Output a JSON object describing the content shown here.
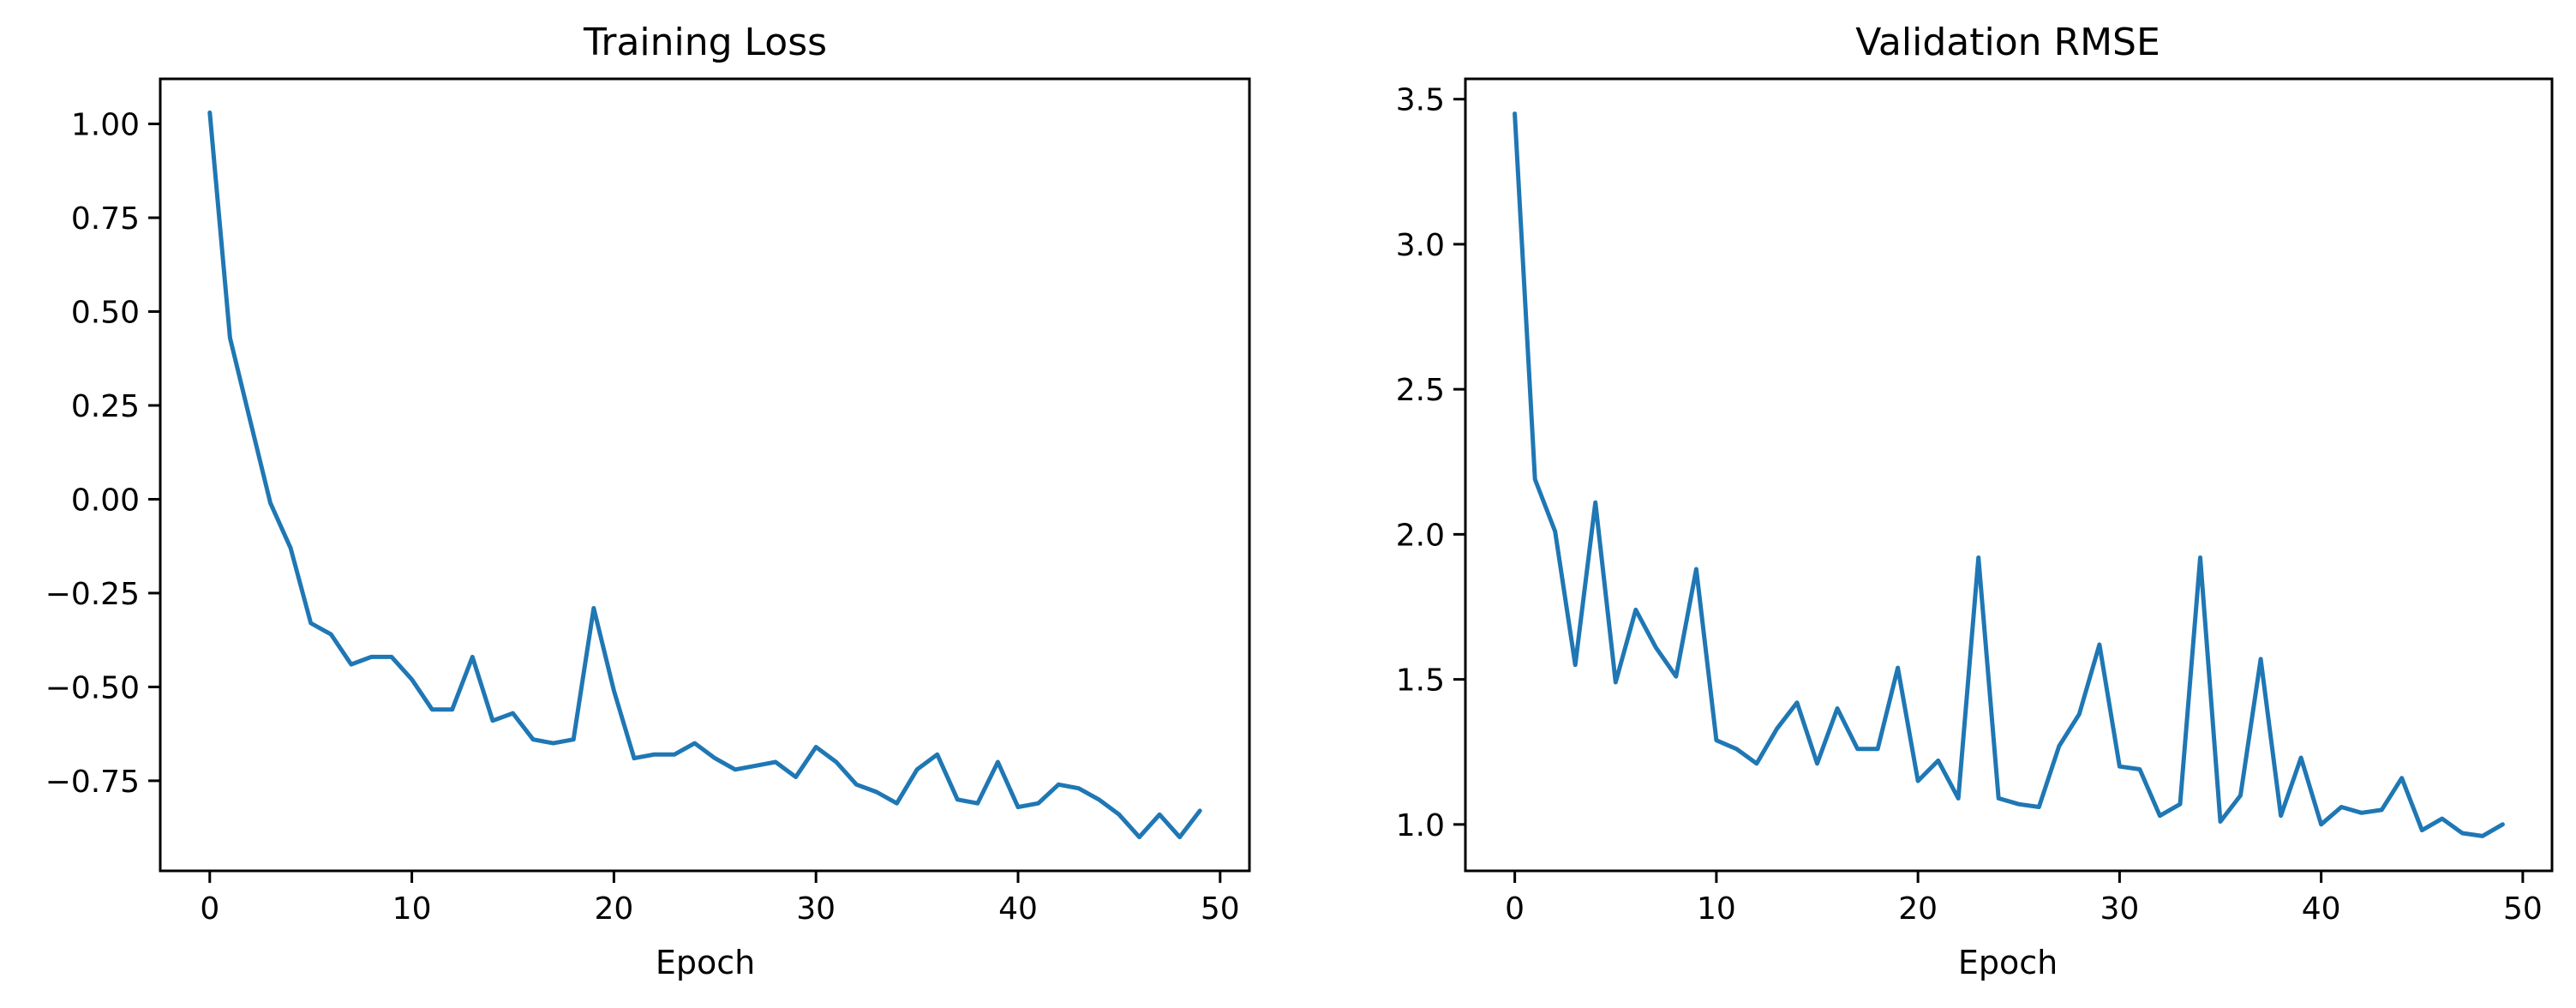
{
  "chart_data": [
    {
      "type": "line",
      "title": "Training Loss",
      "xlabel": "Epoch",
      "ylabel": "",
      "xlim": [
        -2.45,
        51.45
      ],
      "ylim": [
        -0.99,
        1.12
      ],
      "xticks": [
        0,
        10,
        20,
        30,
        40,
        50
      ],
      "yticks": [
        -0.75,
        -0.5,
        -0.25,
        0.0,
        0.25,
        0.5,
        0.75,
        1.0
      ],
      "ytick_labels": [
        "−0.75",
        "−0.50",
        "−0.25",
        "0.00",
        "0.25",
        "0.50",
        "0.75",
        "1.00"
      ],
      "grid": false,
      "color": "#1f77b4",
      "series": [
        {
          "x": [
            0,
            1,
            2,
            3,
            4,
            5,
            6,
            7,
            8,
            9,
            10,
            11,
            12,
            13,
            14,
            15,
            16,
            17,
            18,
            19,
            20,
            21,
            22,
            23,
            24,
            25,
            26,
            27,
            28,
            29,
            30,
            31,
            32,
            33,
            34,
            35,
            36,
            37,
            38,
            39,
            40,
            41,
            42,
            43,
            44,
            45,
            46,
            47,
            48,
            49
          ],
          "values": [
            1.03,
            0.43,
            0.21,
            -0.01,
            -0.13,
            -0.33,
            -0.36,
            -0.44,
            -0.42,
            -0.42,
            -0.48,
            -0.56,
            -0.56,
            -0.42,
            -0.59,
            -0.57,
            -0.64,
            -0.65,
            -0.64,
            -0.29,
            -0.51,
            -0.69,
            -0.68,
            -0.68,
            -0.65,
            -0.69,
            -0.72,
            -0.71,
            -0.7,
            -0.74,
            -0.66,
            -0.7,
            -0.76,
            -0.78,
            -0.81,
            -0.72,
            -0.68,
            -0.8,
            -0.81,
            -0.7,
            -0.82,
            -0.81,
            -0.76,
            -0.77,
            -0.8,
            -0.84,
            -0.9,
            -0.84,
            -0.9,
            -0.83
          ]
        }
      ]
    },
    {
      "type": "line",
      "title": "Validation RMSE",
      "xlabel": "Epoch",
      "ylabel": "",
      "xlim": [
        -2.45,
        51.45
      ],
      "ylim": [
        0.84,
        3.57
      ],
      "xticks": [
        0,
        10,
        20,
        30,
        40,
        50
      ],
      "yticks": [
        1.0,
        1.5,
        2.0,
        2.5,
        3.0,
        3.5
      ],
      "ytick_labels": [
        "1.0",
        "1.5",
        "2.0",
        "2.5",
        "3.0",
        "3.5"
      ],
      "grid": false,
      "color": "#1f77b4",
      "series": [
        {
          "x": [
            0,
            1,
            2,
            3,
            4,
            5,
            6,
            7,
            8,
            9,
            10,
            11,
            12,
            13,
            14,
            15,
            16,
            17,
            18,
            19,
            20,
            21,
            22,
            23,
            24,
            25,
            26,
            27,
            28,
            29,
            30,
            31,
            32,
            33,
            34,
            35,
            36,
            37,
            38,
            39,
            40,
            41,
            42,
            43,
            44,
            45,
            46,
            47,
            48,
            49
          ],
          "values": [
            3.45,
            2.19,
            2.01,
            1.55,
            2.11,
            1.49,
            1.74,
            1.61,
            1.51,
            1.88,
            1.29,
            1.26,
            1.21,
            1.33,
            1.42,
            1.21,
            1.4,
            1.26,
            1.26,
            1.54,
            1.15,
            1.22,
            1.09,
            1.92,
            1.09,
            1.07,
            1.06,
            1.27,
            1.38,
            1.62,
            1.2,
            1.19,
            1.03,
            1.07,
            1.92,
            1.01,
            1.1,
            1.57,
            1.03,
            1.23,
            1.0,
            1.06,
            1.04,
            1.05,
            1.16,
            0.98,
            1.02,
            0.97,
            0.96,
            1.0
          ]
        }
      ]
    }
  ]
}
